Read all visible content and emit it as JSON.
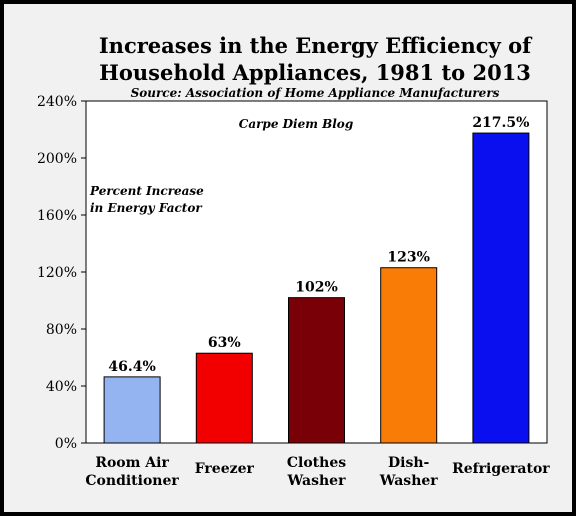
{
  "chart_data": {
    "type": "bar",
    "title_line1": "Increases in the Energy Efficiency of",
    "title_line2": "Household Appliances, 1981 to 2013",
    "subtitle": "Source: Association of Home Appliance Manufacturers",
    "annotation": "Carpe Diem Blog",
    "ylabel_line1": "Percent Increase",
    "ylabel_line2": "in Energy Factor",
    "ylim": [
      0,
      240
    ],
    "yticks": [
      0,
      40,
      80,
      120,
      160,
      200,
      240
    ],
    "ytick_labels": [
      "0%",
      "40%",
      "80%",
      "120%",
      "160%",
      "200%",
      "240%"
    ],
    "grid": false,
    "categories": [
      [
        "Room Air",
        "Conditioner"
      ],
      [
        "Freezer"
      ],
      [
        "Clothes",
        "Washer"
      ],
      [
        "Dish-",
        "Washer"
      ],
      [
        "Refrigerator"
      ]
    ],
    "values": [
      46.4,
      63,
      102,
      123,
      217.5
    ],
    "data_labels": [
      "46.4%",
      "63%",
      "102%",
      "123%",
      "217.5%"
    ],
    "colors": [
      "#93b4f0",
      "#f20000",
      "#7a0008",
      "#f97c07",
      "#0a0ff0"
    ]
  }
}
